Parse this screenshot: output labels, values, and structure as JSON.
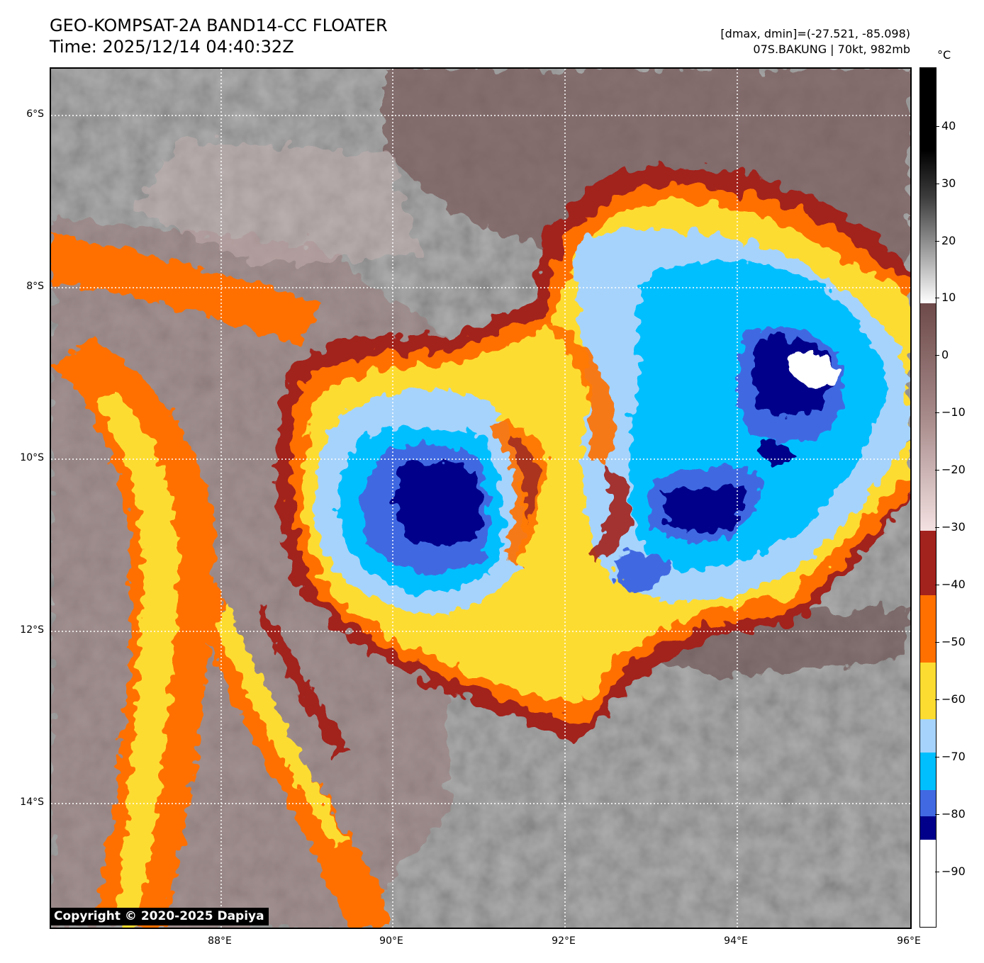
{
  "header": {
    "title_line1": "GEO-KOMPSAT-2A BAND14-CC FLOATER",
    "title_line2": "Time: 2025/12/14 04:40:32Z",
    "info_line1": "[dmax, dmin]=(-27.521, -85.098)",
    "info_line2": "07S.BAKUNG | 70kt, 982mb"
  },
  "map": {
    "lat_labels": [
      "6°S",
      "8°S",
      "10°S",
      "12°S",
      "14°S"
    ],
    "lon_labels": [
      "88°E",
      "90°E",
      "92°E",
      "94°E",
      "96°E"
    ],
    "copyright": "Copyright © 2020-2025 Dapiya"
  },
  "colorbar": {
    "unit": "°C",
    "tick_labels": [
      "40",
      "30",
      "20",
      "10",
      "0",
      "−10",
      "−20",
      "−30",
      "−40",
      "−50",
      "−60",
      "−70",
      "−80",
      "−90"
    ],
    "bands": [
      {
        "name": "white",
        "color": "#ffffff"
      },
      {
        "name": "navy",
        "color": "#00008b"
      },
      {
        "name": "royal-blue",
        "color": "#4169e1"
      },
      {
        "name": "deep-sky-blue",
        "color": "#00bfff"
      },
      {
        "name": "light-sky-blue",
        "color": "#a6d3fb"
      },
      {
        "name": "gold",
        "color": "#fddc32"
      },
      {
        "name": "orange",
        "color": "#ff7000"
      },
      {
        "name": "dark-red",
        "color": "#a2221e"
      }
    ]
  }
}
